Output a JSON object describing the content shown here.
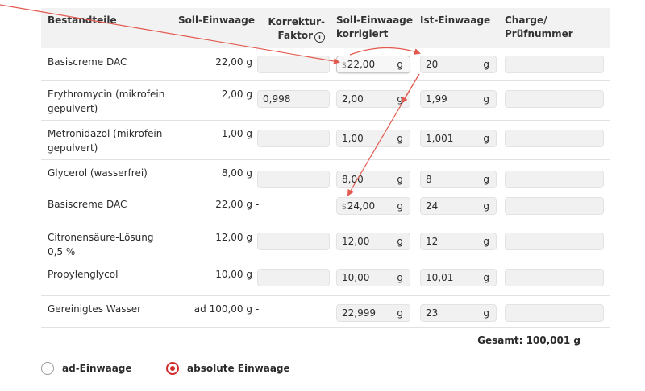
{
  "header": {
    "bestandteile": "Bestandteile",
    "soll": "Soll-Einwaage",
    "korrektur_line1": "Korrektur-",
    "korrektur_line2": "Faktor",
    "soll_korr_line1": "Soll-Einwaage",
    "soll_korr_line2": "korrigiert",
    "ist": "Ist-Einwaage",
    "charge_line1": "Charge/",
    "charge_line2": "Prüfnummer"
  },
  "rows": [
    {
      "name": "Basiscreme DAC",
      "soll": "22,00 g",
      "korrektur": "",
      "dash": "",
      "soll_korr_prefix": "S",
      "soll_korr": "22,00",
      "unit": "g",
      "ist": "20",
      "charge": ""
    },
    {
      "name": "Erythromycin (mikrofein gepulvert)",
      "soll": "2,00 g",
      "korrektur": "0,998",
      "dash": "",
      "soll_korr_prefix": "",
      "soll_korr": "2,00",
      "unit": "g",
      "ist": "1,99",
      "charge": ""
    },
    {
      "name": "Metronidazol (mikrofein gepulvert)",
      "soll": "1,00 g",
      "korrektur": "",
      "dash": "",
      "soll_korr_prefix": "",
      "soll_korr": "1,00",
      "unit": "g",
      "ist": "1,001",
      "charge": ""
    },
    {
      "name": "Glycerol (wasserfrei)",
      "soll": "8,00 g",
      "korrektur": "",
      "dash": "",
      "soll_korr_prefix": "",
      "soll_korr": "8,00",
      "unit": "g",
      "ist": "8",
      "charge": ""
    },
    {
      "name": "Basiscreme DAC",
      "soll": "22,00 g",
      "korrektur": "",
      "dash": "-",
      "soll_korr_prefix": "S",
      "soll_korr": "24,00",
      "unit": "g",
      "ist": "24",
      "charge": ""
    },
    {
      "name": "Citronensäure-Lösung 0,5 %",
      "soll": "12,00 g",
      "korrektur": "",
      "dash": "",
      "soll_korr_prefix": "",
      "soll_korr": "12,00",
      "unit": "g",
      "ist": "12",
      "charge": ""
    },
    {
      "name": "Propylenglycol",
      "soll": "10,00 g",
      "korrektur": "",
      "dash": "",
      "soll_korr_prefix": "",
      "soll_korr": "10,00",
      "unit": "g",
      "ist": "10,01",
      "charge": ""
    },
    {
      "name": "Gereinigtes Wasser",
      "soll": "ad 100,00 g",
      "korrektur": "",
      "dash": "-",
      "soll_korr_prefix": "",
      "soll_korr": "22,999",
      "unit": "g",
      "ist": "23",
      "charge": ""
    }
  ],
  "total": "Gesamt: 100,001 g",
  "radios": [
    {
      "label": "ad-Einwaage",
      "selected": false
    },
    {
      "label": "absolute Einwaage",
      "selected": true
    }
  ],
  "colors": {
    "accent": "#d22b2b",
    "arrow": "#e25a4f",
    "header_bg": "#f2f2f2",
    "input_bg": "#f1f1f1"
  }
}
